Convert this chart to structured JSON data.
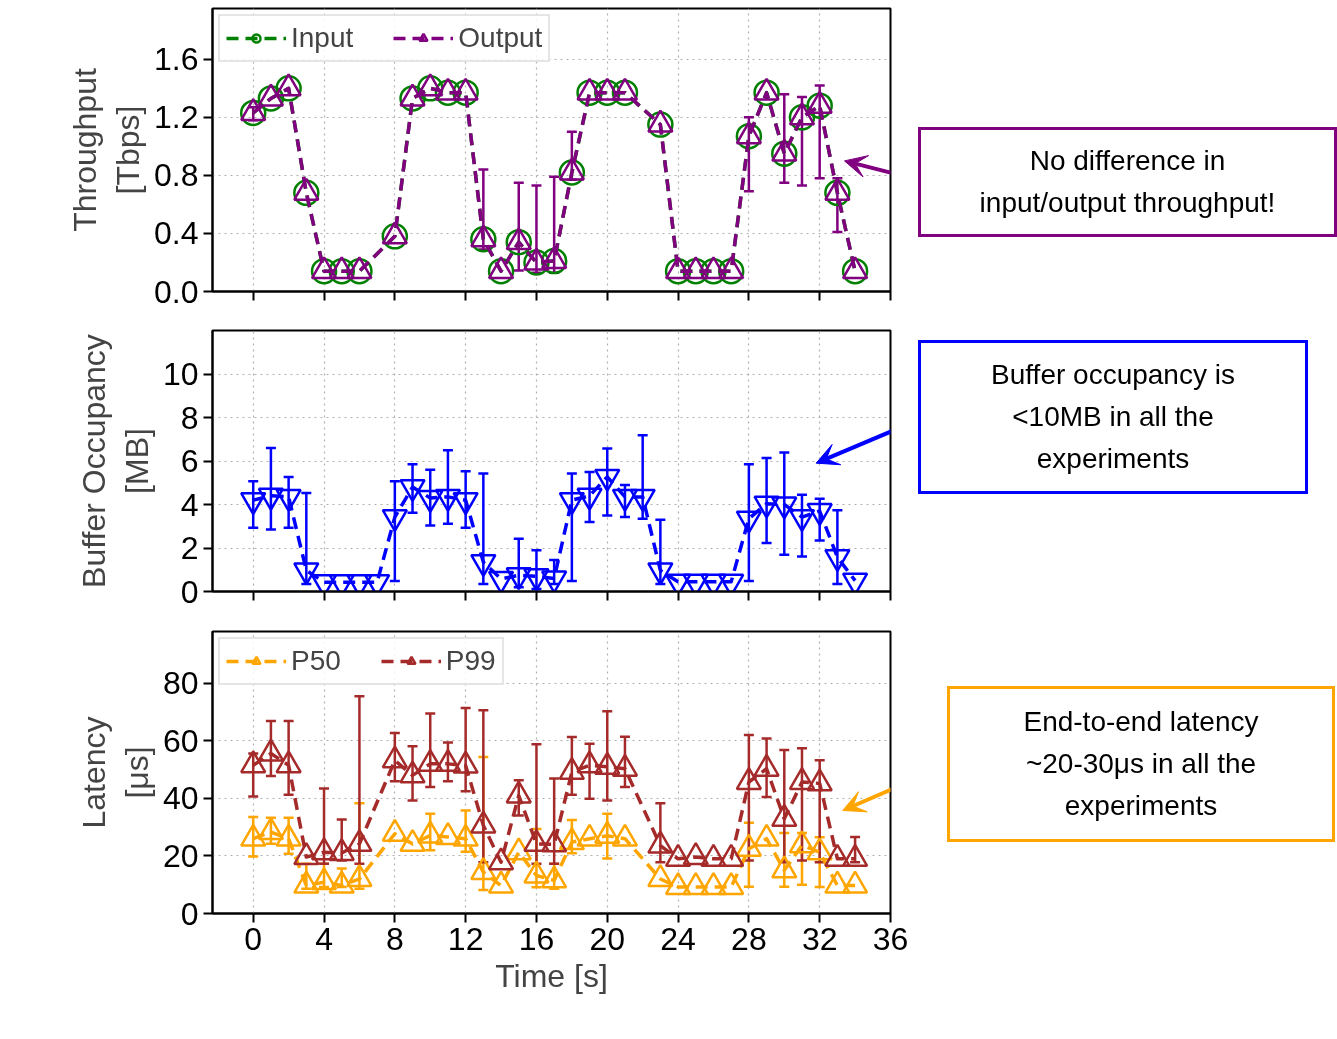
{
  "chart_data": [
    {
      "type": "line",
      "ylabel": "Throughput\n[Tbps]",
      "xlim": [
        -2.3,
        36
      ],
      "xticks": [
        0,
        4,
        8,
        12,
        16,
        20,
        24,
        28,
        32,
        36
      ],
      "ylim": [
        0,
        1.95
      ],
      "yticks": [
        {
          "value": 0,
          "label": "0.0"
        },
        0.4,
        0.8,
        1.2,
        1.6
      ],
      "tick_labels": "y",
      "grid": true,
      "legend": "top left",
      "line_style": "dashed",
      "series": [
        {
          "name": "Input",
          "color": "#008000",
          "marker": "circle",
          "x": [
            0,
            1,
            2,
            3,
            4,
            5,
            6,
            8,
            9,
            10,
            11,
            12,
            13,
            14,
            15,
            16,
            17,
            18,
            19,
            20,
            21,
            23,
            24,
            25,
            26,
            27,
            28,
            29,
            30,
            31,
            32,
            33,
            34
          ],
          "values": [
            1.23,
            1.33,
            1.4,
            0.68,
            0.14,
            0.14,
            0.14,
            0.38,
            1.33,
            1.4,
            1.37,
            1.37,
            0.36,
            0.14,
            0.34,
            0.2,
            0.21,
            0.82,
            1.37,
            1.37,
            1.37,
            1.15,
            0.14,
            0.14,
            0.14,
            0.14,
            1.07,
            1.37,
            0.95,
            1.2,
            1.28,
            0.68,
            0.14
          ]
        },
        {
          "name": "Output",
          "color": "#800080",
          "marker": "triangle",
          "x": [
            0,
            1,
            2,
            3,
            4,
            5,
            6,
            8,
            9,
            10,
            11,
            12,
            13,
            14,
            15,
            16,
            17,
            18,
            19,
            20,
            21,
            23,
            24,
            25,
            26,
            27,
            28,
            29,
            30,
            31,
            32,
            33,
            34
          ],
          "values": [
            1.23,
            1.33,
            1.4,
            0.68,
            0.14,
            0.14,
            0.14,
            0.38,
            1.33,
            1.4,
            1.37,
            1.37,
            0.36,
            0.14,
            0.34,
            0.2,
            0.21,
            0.82,
            1.37,
            1.37,
            1.37,
            1.15,
            0.14,
            0.14,
            0.14,
            0.14,
            1.07,
            1.37,
            0.95,
            1.2,
            1.28,
            0.68,
            0.14
          ],
          "errors": [
            [
              1.18,
              1.27
            ],
            null,
            null,
            null,
            null,
            null,
            null,
            null,
            null,
            null,
            null,
            null,
            [
              0.29,
              0.84
            ],
            null,
            [
              0.145,
              0.75
            ],
            [
              0.13,
              0.73
            ],
            [
              0.13,
              0.79
            ],
            [
              0.77,
              1.1
            ],
            null,
            null,
            null,
            null,
            null,
            null,
            null,
            null,
            [
              0.69,
              1.2
            ],
            null,
            [
              0.75,
              1.36
            ],
            [
              0.73,
              1.34
            ],
            [
              0.78,
              1.42
            ],
            [
              0.41,
              0.78
            ],
            null
          ]
        }
      ],
      "annotations": [
        "No difference in\ninput/output throughput!"
      ]
    },
    {
      "type": "line",
      "ylabel": "Buffer Occupancy\n[MB]",
      "xlim": [
        -2.3,
        36
      ],
      "xticks": [
        0,
        4,
        8,
        12,
        16,
        20,
        24,
        28,
        32,
        36
      ],
      "ylim": [
        0,
        12
      ],
      "yticks": [
        0,
        2,
        4,
        6,
        8,
        10
      ],
      "tick_labels": "y",
      "grid": true,
      "line_style": "dashed",
      "x": [
        0,
        1,
        2,
        3,
        4,
        5,
        6,
        7,
        8,
        9,
        10,
        11,
        12,
        13,
        14,
        15,
        16,
        17,
        18,
        19,
        20,
        21,
        22,
        23,
        24,
        25,
        26,
        27,
        28,
        29,
        30,
        31,
        32,
        33,
        34
      ],
      "series": [
        {
          "color": "#0000ff",
          "marker": "triangle",
          "values": [
            4.2,
            4.4,
            4.35,
            0.97,
            0.43,
            0.43,
            0.43,
            0.43,
            3.42,
            4.8,
            4.3,
            4.35,
            4.2,
            1.35,
            0.58,
            0.75,
            0.7,
            0.6,
            4.2,
            4.4,
            5.27,
            4.35,
            4.35,
            0.97,
            0.45,
            0.45,
            0.45,
            0.45,
            3.35,
            4.04,
            4.0,
            3.42,
            3.7,
            1.58,
            0.5
          ],
          "errors": [
            [
              2.93,
              5.07
            ],
            [
              2.85,
              6.6
            ],
            [
              2.93,
              5.27
            ],
            [
              0.35,
              4.53
            ],
            null,
            null,
            null,
            null,
            [
              0.48,
              5.07
            ],
            [
              3.62,
              5.85
            ],
            [
              3.04,
              5.6
            ],
            [
              3.12,
              6.5
            ],
            [
              2.93,
              5.53
            ],
            [
              0.35,
              5.42
            ],
            null,
            [
              0.2,
              2.43
            ],
            [
              0.12,
              1.9
            ],
            [
              0.35,
              1.45
            ],
            [
              0.48,
              5.42
            ],
            [
              3.2,
              5.5
            ],
            [
              3.5,
              6.57
            ],
            [
              3.42,
              4.9
            ],
            [
              3.35,
              7.18
            ],
            [
              0.35,
              3.3
            ],
            null,
            null,
            null,
            null,
            [
              0.48,
              5.85
            ],
            [
              2.23,
              6.14
            ],
            [
              1.69,
              6.39
            ],
            [
              1.61,
              4.45
            ],
            [
              2.35,
              4.27
            ],
            [
              0.35,
              3.73
            ],
            null
          ]
        }
      ],
      "annotations": [
        "Buffer occupancy is\n<10MB in all the\nexperiments"
      ]
    },
    {
      "type": "line",
      "xlabel": "Time [s]",
      "ylabel": "Latency\n[μs]",
      "xlim": [
        -2.3,
        36
      ],
      "xticks": [
        0,
        4,
        8,
        12,
        16,
        20,
        24,
        28,
        32,
        36
      ],
      "ylim": [
        0,
        98
      ],
      "yticks": [
        0,
        20,
        40,
        60,
        80
      ],
      "grid": true,
      "legend": "top left",
      "line_style": "dashed",
      "series": [
        {
          "name": "P50",
          "color": "#ffa500",
          "marker": "triangle",
          "x": [
            0,
            1,
            2,
            3,
            4,
            5,
            6,
            8,
            9,
            10,
            11,
            12,
            13,
            14,
            15,
            16,
            17,
            18,
            19,
            20,
            21,
            23,
            24,
            25,
            26,
            27,
            28,
            29,
            30,
            31,
            32,
            33,
            34
          ],
          "values": [
            26,
            28.3,
            26,
            9.7,
            10.9,
            9.7,
            12,
            27.7,
            24.2,
            27.1,
            26.6,
            26,
            14.4,
            9.7,
            21.3,
            13.2,
            11.5,
            24.8,
            26,
            27,
            26,
            12,
            9.2,
            9.2,
            9.2,
            9.2,
            22.5,
            26,
            15,
            23.7,
            21.3,
            9.7,
            9.7
          ],
          "errors": [
            [
              19.8,
              33.5
            ],
            [
              24.2,
              33.3
            ],
            [
              20.8,
              33.3
            ],
            [
              8.6,
              17.3
            ],
            [
              9.2,
              17.3
            ],
            [
              9.2,
              15.6
            ],
            [
              8.6,
              38.3
            ],
            null,
            null,
            [
              22,
              34.7
            ],
            null,
            [
              21.5,
              35.8
            ],
            [
              8.2,
              54.4
            ],
            null,
            null,
            [
              9.1,
              29.4
            ],
            [
              8.6,
              17.3
            ],
            [
              20.9,
              32.5
            ],
            null,
            [
              19.1,
              34.7
            ],
            null,
            null,
            null,
            null,
            null,
            null,
            [
              9.3,
              31.5
            ],
            null,
            [
              9.3,
              28
            ],
            [
              10,
              28
            ],
            [
              9.2,
              26.5
            ],
            null,
            null
          ]
        },
        {
          "name": "P99",
          "color": "#a52a2a",
          "marker": "triangle",
          "x": [
            0,
            1,
            2,
            3,
            4,
            5,
            6,
            8,
            9,
            10,
            11,
            12,
            13,
            14,
            15,
            16,
            17,
            18,
            19,
            20,
            21,
            23,
            24,
            25,
            26,
            27,
            28,
            29,
            30,
            31,
            32,
            33,
            34
          ],
          "values": [
            51.5,
            55.6,
            51.5,
            19.6,
            21.3,
            21,
            24.2,
            53.2,
            48,
            52,
            52,
            51.4,
            30.6,
            17.8,
            41,
            24.2,
            24,
            49.2,
            51.5,
            51,
            50.3,
            23.6,
            19,
            19.6,
            19,
            19,
            45.7,
            50.3,
            32.9,
            45.7,
            45.2,
            19,
            19
          ],
          "errors": [
            [
              40.7,
              55.6
            ],
            [
              47.8,
              66.9
            ],
            [
              41.3,
              66.9
            ],
            null,
            [
              17.3,
              43.4
            ],
            [
              18.4,
              32.7
            ],
            [
              17.3,
              75.5
            ],
            [
              46,
              62.7
            ],
            [
              39.3,
              58.1
            ],
            [
              44,
              69.5
            ],
            [
              46,
              59.4
            ],
            [
              42.5,
              71.4
            ],
            [
              17.8,
              70.6
            ],
            null,
            [
              34.1,
              46.3
            ],
            [
              17.3,
              58.8
            ],
            [
              17.3,
              46.9
            ],
            [
              41.3,
              61.3
            ],
            [
              39.9,
              59
            ],
            [
              39.3,
              70.3
            ],
            [
              44,
              61.4
            ],
            [
              17.8,
              38.3
            ],
            null,
            null,
            null,
            null,
            [
              18.4,
              62
            ],
            [
              40.5,
              60.8
            ],
            [
              17.8,
              56.8
            ],
            [
              18.4,
              57.4
            ],
            [
              17.8,
              53.3
            ],
            null,
            [
              17.8,
              26.6
            ]
          ]
        }
      ],
      "annotations": [
        "End-to-end latency\n~20-30μs in all the\nexperiments"
      ]
    }
  ]
}
